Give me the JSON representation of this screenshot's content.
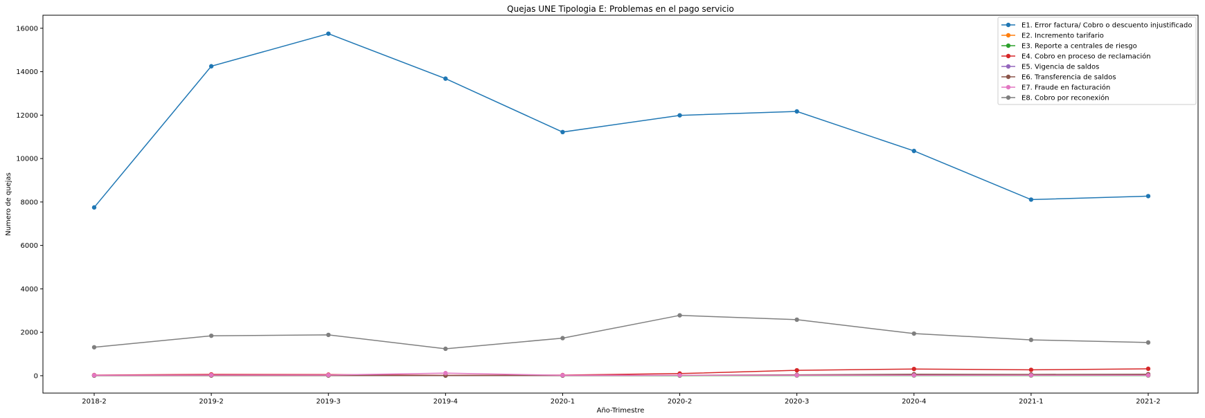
{
  "chart_data": {
    "type": "line",
    "title": "Quejas UNE Tipologia E: Problemas en el pago servicio",
    "xlabel": "Año-Trimestre",
    "ylabel": "Numero de quejas",
    "categories": [
      "2018-2",
      "2019-2",
      "2019-3",
      "2019-4",
      "2020-1",
      "2020-2",
      "2020-3",
      "2020-4",
      "2021-1",
      "2021-2"
    ],
    "ylim": [
      -800,
      16600
    ],
    "yticks": [
      0,
      2000,
      4000,
      6000,
      8000,
      10000,
      12000,
      14000,
      16000
    ],
    "grid": false,
    "legend_position": "top-right",
    "series": [
      {
        "name": "E1. Error factura/ Cobro o descuento injustificado",
        "color": "#1f77b4",
        "values": [
          7750,
          14250,
          15750,
          13680,
          11220,
          11990,
          12170,
          10350,
          8110,
          8270
        ]
      },
      {
        "name": "E2. Incremento tarifario",
        "color": "#ff7f0e",
        "values": [
          15,
          25,
          20,
          10,
          10,
          15,
          20,
          25,
          20,
          20
        ]
      },
      {
        "name": "E3. Reporte a centrales de riesgo",
        "color": "#2ca02c",
        "values": [
          5,
          10,
          10,
          5,
          5,
          5,
          10,
          10,
          10,
          10
        ]
      },
      {
        "name": "E4. Cobro en proceso de reclamación",
        "color": "#d62728",
        "values": [
          30,
          60,
          50,
          20,
          30,
          100,
          250,
          310,
          270,
          320
        ]
      },
      {
        "name": "E5. Vigencia de saldos",
        "color": "#9467bd",
        "values": [
          10,
          15,
          15,
          10,
          10,
          20,
          30,
          40,
          35,
          40
        ]
      },
      {
        "name": "E6. Transferencia de saldos",
        "color": "#8c564b",
        "values": [
          10,
          10,
          10,
          10,
          10,
          20,
          40,
          70,
          60,
          70
        ]
      },
      {
        "name": "E7. Fraude en facturación",
        "color": "#e377c2",
        "values": [
          20,
          30,
          30,
          120,
          20,
          20,
          20,
          20,
          20,
          20
        ]
      },
      {
        "name": "E8. Cobro por reconexión",
        "color": "#7f7f7f",
        "values": [
          1310,
          1840,
          1880,
          1240,
          1730,
          2780,
          2580,
          1940,
          1650,
          1530
        ]
      }
    ]
  }
}
